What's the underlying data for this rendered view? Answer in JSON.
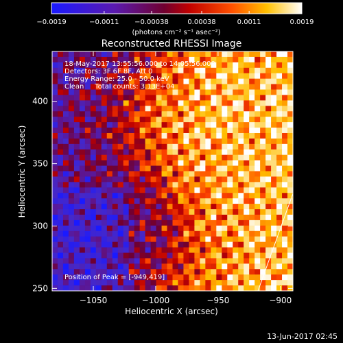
{
  "chart_data": {
    "type": "heatmap",
    "title": "Reconstructed RHESSI Image",
    "xlabel": "Heliocentric X (arcsec)",
    "ylabel": "Heliocentric Y (arcsec)",
    "xlim": [
      -1083,
      -890
    ],
    "ylim": [
      248,
      440
    ],
    "x_ticks": [
      -1050,
      -1000,
      -950,
      -900
    ],
    "x_tick_labels": [
      "−1050",
      "−1000",
      "−950",
      "−900"
    ],
    "y_ticks": [
      250,
      300,
      350,
      400
    ],
    "y_tick_labels": [
      "250",
      "300",
      "350",
      "400"
    ],
    "colorbar": {
      "ticks": [
        -0.0019,
        -0.0011,
        -0.00038,
        0.00038,
        0.0011,
        0.0019
      ],
      "tick_labels": [
        "−0.0019",
        "−0.0011",
        "−0.00038",
        "0.00038",
        "0.0011",
        "0.0019"
      ],
      "label": "(photons cm⁻² s⁻¹ asec⁻²)",
      "range": [
        -0.0019,
        0.0019
      ],
      "colormap": "blue-purple-red-orange-yellow-white"
    },
    "annotations": [
      "18-May-2017 13:55:56.000 to 14:05:56.000",
      "Detectors: 3F 6F 8F, Att 0",
      "Energy Range: 25.0 - 50.0 keV",
      "Clean     Total counts: 3.13E+04"
    ],
    "peak_label": "Position of Peak = [-949,419]",
    "peak_position": [
      -949,
      419
    ],
    "limb_line": {
      "x": [
        -918,
        -890
      ],
      "y": [
        248,
        326
      ]
    },
    "grid": false
  },
  "footer": {
    "timestamp": "13-Jun-2017 02:45"
  },
  "colors": {
    "background": "#000000",
    "text": "#ffffff"
  }
}
